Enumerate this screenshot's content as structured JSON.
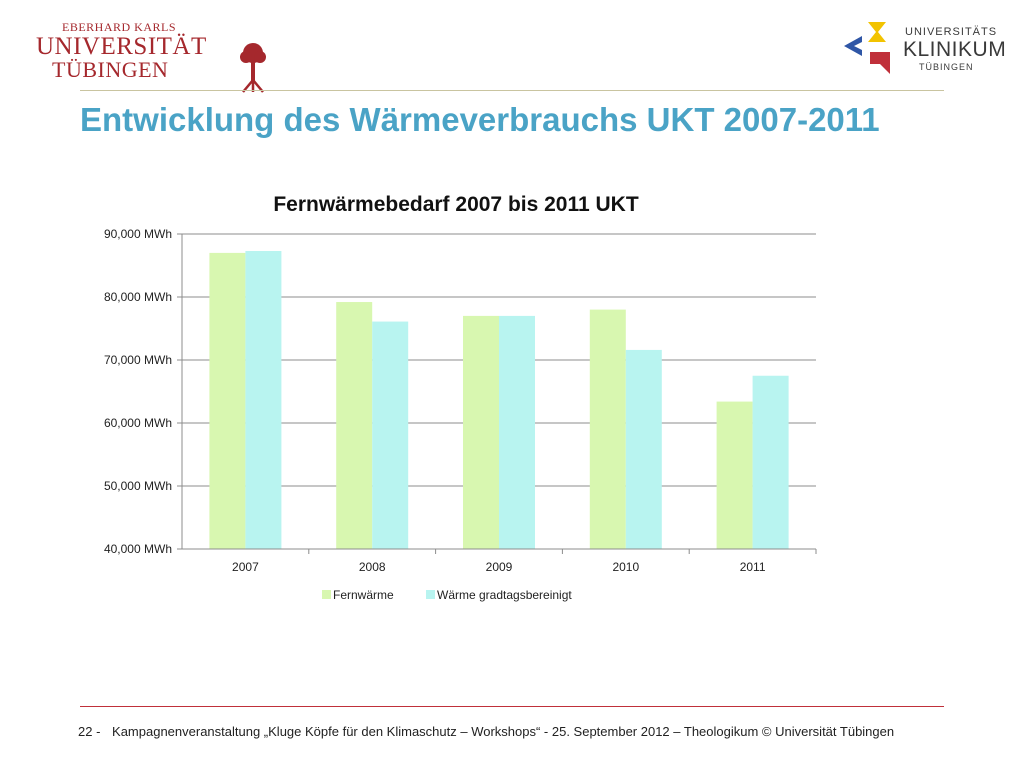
{
  "header": {
    "logo_left": {
      "line1": "EBERHARD KARLS",
      "line2": "UNIVERSITÄT",
      "line3": "TÜBINGEN"
    },
    "logo_right": {
      "line1": "UNIVERSITÄTS",
      "line2": "KLINIKUM",
      "line3": "TÜBINGEN"
    }
  },
  "slide": {
    "title": "Entwicklung des Wärmeverbrauchs UKT 2007-2011"
  },
  "chart_data": {
    "type": "bar",
    "title": "Fernwärmebedarf 2007 bis 2011 UKT",
    "categories": [
      "2007",
      "2008",
      "2009",
      "2010",
      "2011"
    ],
    "series": [
      {
        "name": "Fernwärme",
        "values": [
          87000,
          79200,
          77000,
          78000,
          63400
        ],
        "color": "#d8f7b0"
      },
      {
        "name": "Wärme gradtagsbereinigt",
        "values": [
          87300,
          76100,
          77000,
          71600,
          67500
        ],
        "color": "#b8f4f0"
      }
    ],
    "ylim": [
      40000,
      90000
    ],
    "yticks": [
      40000,
      50000,
      60000,
      70000,
      80000,
      90000
    ],
    "ytick_labels": [
      "40,000 MWh",
      "50,000 MWh",
      "60,000 MWh",
      "70,000 MWh",
      "80,000 MWh",
      "90,000 MWh"
    ],
    "grid": true,
    "legend": "bottom",
    "xlabel": "",
    "ylabel": ""
  },
  "footer": {
    "page": "22 -",
    "text": "Kampagnenveranstaltung „Kluge Köpfe für den Klimaschutz – Workshops“ - 25. September 2012 – Theologikum © Universität Tübingen"
  }
}
